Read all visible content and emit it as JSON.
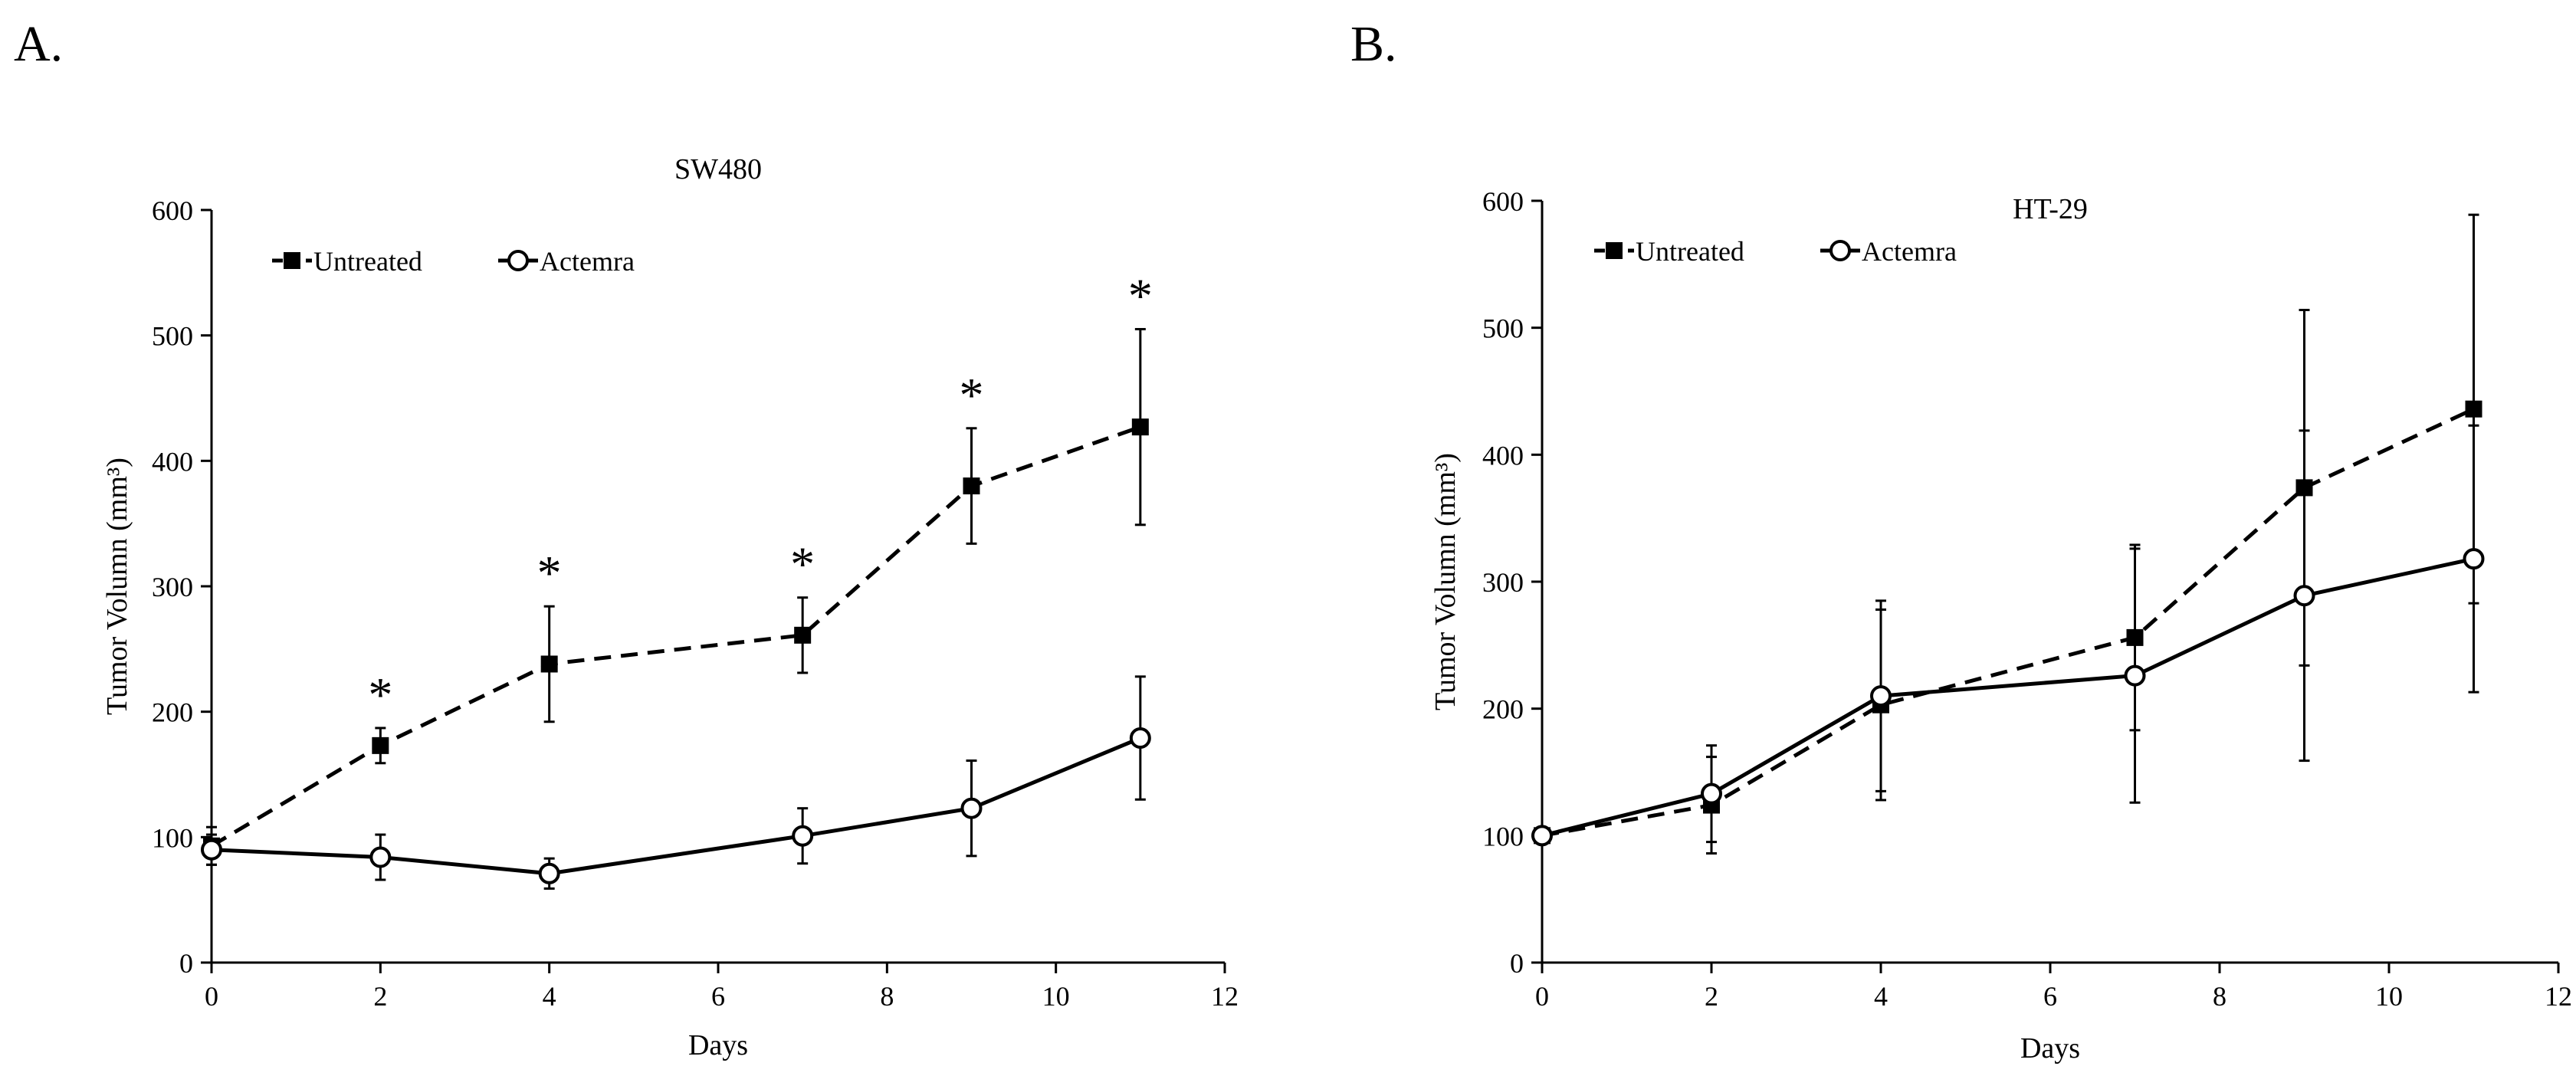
{
  "panels": [
    {
      "panel_label": "A.",
      "chart_data": {
        "type": "line",
        "title": "SW480",
        "xlabel": "Days",
        "ylabel": "Tumor Volumn (mm³)",
        "xlim": [
          0,
          12
        ],
        "ylim": [
          0,
          600
        ],
        "xticks": [
          0,
          2,
          4,
          6,
          8,
          10,
          12
        ],
        "yticks": [
          0,
          100,
          200,
          300,
          400,
          500,
          600
        ],
        "grid": false,
        "legend_position": "top-left",
        "x": [
          0,
          2,
          4,
          7,
          9,
          11
        ],
        "series": [
          {
            "name": "Untreated",
            "style": "dashed",
            "marker": "filled-square",
            "values": [
              93,
              173,
              238,
              261,
              380,
              427
            ],
            "errors": [
              15,
              14,
              46,
              30,
              46,
              78
            ]
          },
          {
            "name": "Actemra",
            "style": "solid",
            "marker": "open-circle",
            "values": [
              90,
              84,
              71,
              101,
              123,
              179
            ],
            "errors": [
              12,
              18,
              12,
              22,
              38,
              49
            ]
          }
        ],
        "annotations": [
          {
            "text": "*",
            "x": 2
          },
          {
            "text": "*",
            "x": 4
          },
          {
            "text": "*",
            "x": 7
          },
          {
            "text": "*",
            "x": 9
          },
          {
            "text": "*",
            "x": 11
          }
        ]
      }
    },
    {
      "panel_label": "B.",
      "chart_data": {
        "type": "line",
        "title": "HT-29",
        "xlabel": "Days",
        "ylabel": "Tumor Volumn (mm³)",
        "xlim": [
          0,
          12
        ],
        "ylim": [
          0,
          600
        ],
        "xticks": [
          0,
          2,
          4,
          6,
          8,
          10,
          12
        ],
        "yticks": [
          0,
          100,
          200,
          300,
          400,
          500,
          600
        ],
        "grid": false,
        "legend_position": "top-left",
        "x": [
          0,
          2,
          4,
          7,
          9,
          11
        ],
        "series": [
          {
            "name": "Untreated",
            "style": "dashed",
            "marker": "filled-square",
            "values": [
              100,
              124,
              203,
              256,
              374,
              436
            ],
            "errors": [
              3,
              38,
              75,
              73,
              140,
              153
            ]
          },
          {
            "name": "Actemra",
            "style": "solid",
            "marker": "open-circle",
            "values": [
              100,
              133,
              210,
              226,
              289,
              318
            ],
            "errors": [
              3,
              38,
              75,
              100,
              130,
              105
            ]
          }
        ],
        "annotations": []
      }
    }
  ]
}
